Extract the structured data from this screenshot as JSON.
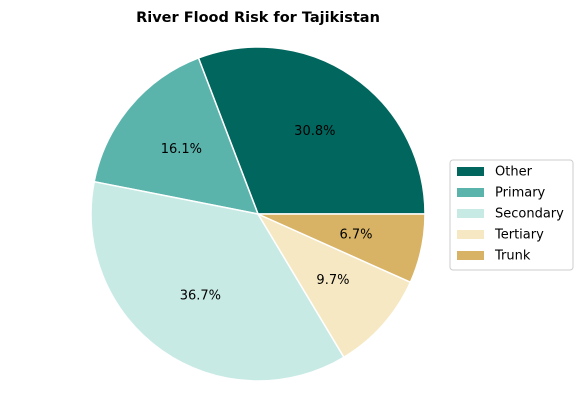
{
  "chart_data": {
    "type": "pie",
    "title": "River Flood Risk for Tajikistan",
    "categories": [
      "Other",
      "Primary",
      "Secondary",
      "Tertiary",
      "Trunk"
    ],
    "values": [
      30.8,
      16.1,
      36.7,
      9.7,
      6.7
    ],
    "labels": [
      "30.8%",
      "16.1%",
      "36.7%",
      "9.7%",
      "6.7%"
    ],
    "colors": [
      "#01665e",
      "#5ab4ac",
      "#c7eae5",
      "#f6e8c3",
      "#d8b365"
    ],
    "start_angle_deg": 0,
    "direction": "counterclockwise",
    "legend_position": "right"
  }
}
